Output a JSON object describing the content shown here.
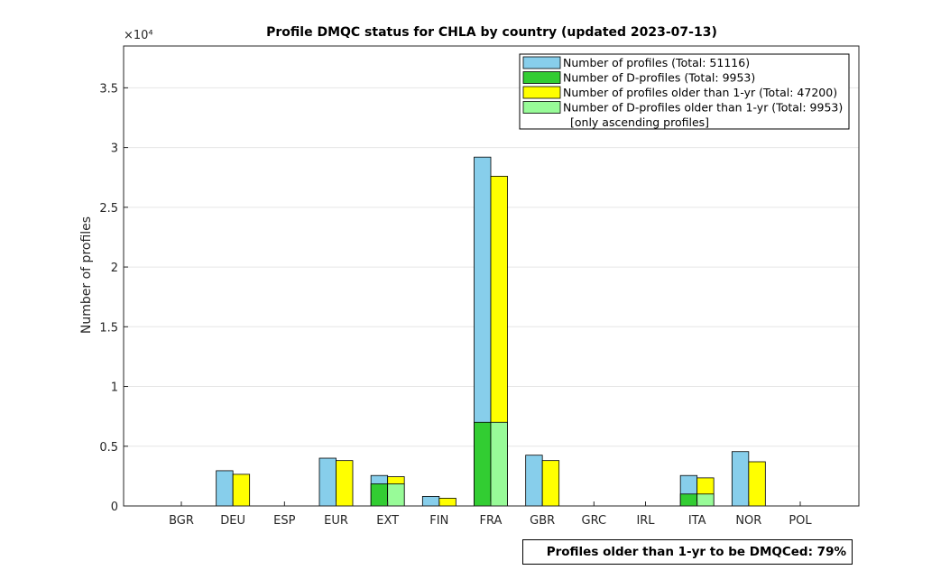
{
  "chart_data": {
    "type": "bar",
    "title": "Profile DMQC status for CHLA by country (updated 2023-07-13)",
    "ylabel": "Number of profiles",
    "xlabel": "",
    "y_exponent_label": "×10⁴",
    "ylim": [
      0,
      38500
    ],
    "yticks": [
      0,
      5000,
      10000,
      15000,
      20000,
      25000,
      30000,
      35000
    ],
    "ytick_labels": [
      "0",
      "0.5",
      "1",
      "1.5",
      "2",
      "2.5",
      "3",
      "3.5"
    ],
    "grid": true,
    "legend_position": "top-right",
    "categories": [
      "BGR",
      "DEU",
      "ESP",
      "EUR",
      "EXT",
      "FIN",
      "FRA",
      "GBR",
      "GRC",
      "IRL",
      "ITA",
      "NOR",
      "POL"
    ],
    "series": [
      {
        "name": "Number of profiles (Total: 51116)",
        "color": "#87ceeb",
        "values": [
          0,
          2950,
          0,
          4000,
          2550,
          800,
          29200,
          4250,
          0,
          0,
          2550,
          4550,
          0
        ]
      },
      {
        "name": "Number of D-profiles (Total: 9953)",
        "color": "#32cd32",
        "values": [
          0,
          0,
          0,
          0,
          1850,
          0,
          7000,
          0,
          0,
          0,
          1000,
          0,
          0
        ]
      },
      {
        "name": "Number of profiles older than 1-yr (Total: 47200)",
        "color": "#ffff00",
        "values": [
          0,
          2650,
          0,
          3800,
          2450,
          650,
          27600,
          3800,
          0,
          0,
          2350,
          3700,
          0
        ]
      },
      {
        "name": "Number of D-profiles older than 1-yr (Total: 9953)",
        "color": "#98fb98",
        "values": [
          0,
          0,
          0,
          0,
          1850,
          0,
          7000,
          0,
          0,
          0,
          1000,
          0,
          0
        ]
      }
    ],
    "legend_note": "[only ascending profiles]",
    "summary": "Profiles older than 1-yr to be DMQCed: 79%"
  }
}
